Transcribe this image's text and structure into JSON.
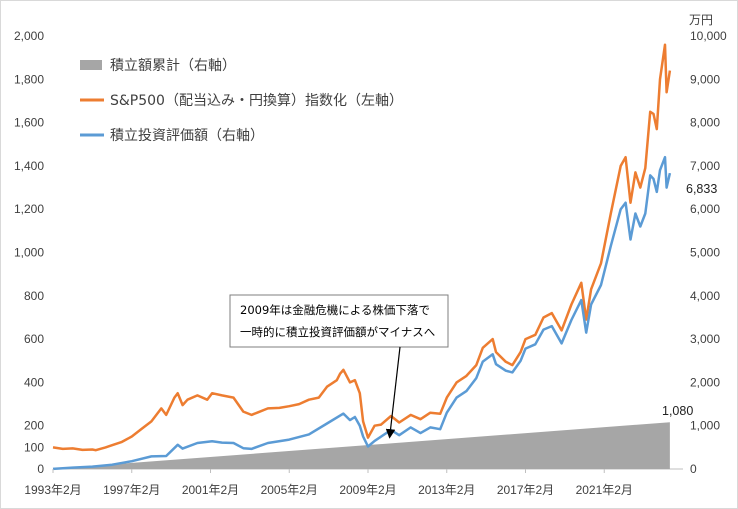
{
  "chart_data": {
    "type": "line",
    "title": "",
    "x_labels": [
      "1993年2月",
      "1997年2月",
      "2001年2月",
      "2005年2月",
      "2009年2月",
      "2013年2月",
      "2017年2月",
      "2021年2月"
    ],
    "x_range": [
      "1993-02",
      "2024-06"
    ],
    "left_axis": {
      "range": [
        0,
        2000
      ],
      "ticks": [
        "0",
        "100",
        "200",
        "400",
        "600",
        "800",
        "1,000",
        "1,200",
        "1,400",
        "1,600",
        "1,800",
        "2,000"
      ],
      "tick_values": [
        0,
        100,
        200,
        400,
        600,
        800,
        1000,
        1200,
        1400,
        1600,
        1800,
        2000
      ]
    },
    "right_axis": {
      "unit": "万円",
      "range": [
        0,
        10000
      ],
      "ticks": [
        "0",
        "1,000",
        "2,000",
        "3,000",
        "4,000",
        "5,000",
        "6,000",
        "7,000",
        "8,000",
        "9,000",
        "10,000"
      ],
      "tick_values": [
        0,
        1000,
        2000,
        3000,
        4000,
        5000,
        6000,
        7000,
        8000,
        9000,
        10000
      ]
    },
    "legend_position": "top-left",
    "series": [
      {
        "name": "積立額累計（右軸）",
        "kind": "area",
        "axis": "right",
        "color": "#a6a6a6",
        "points": [
          [
            "1993-02",
            3
          ],
          [
            "2024-06",
            1080
          ]
        ],
        "end_label": "1,080"
      },
      {
        "name": "S&P500（配当込み・円換算）指数化（左軸）",
        "kind": "line",
        "axis": "left",
        "color": "#ed7d31",
        "points": [
          [
            "1993-02",
            100
          ],
          [
            "1993-08",
            93
          ],
          [
            "1994-02",
            95
          ],
          [
            "1994-08",
            88
          ],
          [
            "1995-02",
            90
          ],
          [
            "1995-04",
            87
          ],
          [
            "1995-10",
            100
          ],
          [
            "1996-02",
            110
          ],
          [
            "1996-08",
            125
          ],
          [
            "1997-02",
            150
          ],
          [
            "1997-08",
            185
          ],
          [
            "1998-02",
            220
          ],
          [
            "1998-08",
            280
          ],
          [
            "1998-11",
            250
          ],
          [
            "1999-04",
            330
          ],
          [
            "1999-06",
            350
          ],
          [
            "1999-09",
            295
          ],
          [
            "1999-12",
            320
          ],
          [
            "2000-06",
            340
          ],
          [
            "2000-12",
            320
          ],
          [
            "2001-03",
            350
          ],
          [
            "2001-09",
            340
          ],
          [
            "2002-04",
            330
          ],
          [
            "2002-10",
            265
          ],
          [
            "2003-03",
            250
          ],
          [
            "2003-07",
            262
          ],
          [
            "2004-01",
            280
          ],
          [
            "2004-08",
            282
          ],
          [
            "2005-02",
            290
          ],
          [
            "2005-08",
            300
          ],
          [
            "2006-02",
            320
          ],
          [
            "2006-08",
            330
          ],
          [
            "2007-01",
            380
          ],
          [
            "2007-07",
            410
          ],
          [
            "2007-09",
            440
          ],
          [
            "2007-11",
            458
          ],
          [
            "2008-03",
            400
          ],
          [
            "2008-06",
            410
          ],
          [
            "2008-09",
            350
          ],
          [
            "2008-11",
            220
          ],
          [
            "2009-02",
            145
          ],
          [
            "2009-06",
            200
          ],
          [
            "2009-10",
            205
          ],
          [
            "2010-04",
            245
          ],
          [
            "2010-09",
            215
          ],
          [
            "2011-04",
            250
          ],
          [
            "2011-10",
            230
          ],
          [
            "2012-04",
            260
          ],
          [
            "2012-10",
            255
          ],
          [
            "2013-02",
            330
          ],
          [
            "2013-08",
            400
          ],
          [
            "2014-02",
            430
          ],
          [
            "2014-08",
            480
          ],
          [
            "2014-12",
            560
          ],
          [
            "2015-06",
            600
          ],
          [
            "2015-08",
            540
          ],
          [
            "2016-02",
            495
          ],
          [
            "2016-06",
            480
          ],
          [
            "2016-11",
            540
          ],
          [
            "2017-02",
            600
          ],
          [
            "2017-08",
            620
          ],
          [
            "2018-01",
            700
          ],
          [
            "2018-06",
            720
          ],
          [
            "2018-12",
            640
          ],
          [
            "2019-06",
            760
          ],
          [
            "2019-12",
            860
          ],
          [
            "2020-03",
            690
          ],
          [
            "2020-06",
            830
          ],
          [
            "2020-12",
            950
          ],
          [
            "2021-06",
            1180
          ],
          [
            "2021-12",
            1400
          ],
          [
            "2022-03",
            1440
          ],
          [
            "2022-06",
            1230
          ],
          [
            "2022-09",
            1370
          ],
          [
            "2022-12",
            1300
          ],
          [
            "2023-03",
            1390
          ],
          [
            "2023-06",
            1650
          ],
          [
            "2023-08",
            1640
          ],
          [
            "2023-10",
            1570
          ],
          [
            "2023-12",
            1800
          ],
          [
            "2024-03",
            1960
          ],
          [
            "2024-04",
            1740
          ],
          [
            "2024-06",
            1840
          ]
        ]
      },
      {
        "name": "積立投資評価額（右軸）",
        "kind": "line",
        "axis": "right",
        "color": "#5b9bd5",
        "end_label": "6,833",
        "points": [
          [
            "1993-02",
            3
          ],
          [
            "1994-02",
            32
          ],
          [
            "1995-02",
            55
          ],
          [
            "1996-02",
            100
          ],
          [
            "1997-02",
            180
          ],
          [
            "1998-02",
            290
          ],
          [
            "1998-11",
            300
          ],
          [
            "1999-06",
            560
          ],
          [
            "1999-09",
            470
          ],
          [
            "2000-06",
            600
          ],
          [
            "2001-03",
            640
          ],
          [
            "2001-09",
            610
          ],
          [
            "2002-04",
            600
          ],
          [
            "2002-10",
            480
          ],
          [
            "2003-03",
            465
          ],
          [
            "2004-01",
            600
          ],
          [
            "2005-02",
            680
          ],
          [
            "2006-02",
            800
          ],
          [
            "2007-01",
            1050
          ],
          [
            "2007-11",
            1280
          ],
          [
            "2008-03",
            1130
          ],
          [
            "2008-06",
            1200
          ],
          [
            "2008-09",
            1000
          ],
          [
            "2008-11",
            750
          ],
          [
            "2009-02",
            520
          ],
          [
            "2009-06",
            650
          ],
          [
            "2010-04",
            900
          ],
          [
            "2010-09",
            780
          ],
          [
            "2011-04",
            960
          ],
          [
            "2011-10",
            830
          ],
          [
            "2012-04",
            960
          ],
          [
            "2012-10",
            920
          ],
          [
            "2013-02",
            1300
          ],
          [
            "2013-08",
            1650
          ],
          [
            "2014-02",
            1800
          ],
          [
            "2014-08",
            2100
          ],
          [
            "2014-12",
            2480
          ],
          [
            "2015-06",
            2650
          ],
          [
            "2015-08",
            2420
          ],
          [
            "2016-02",
            2270
          ],
          [
            "2016-06",
            2230
          ],
          [
            "2016-11",
            2500
          ],
          [
            "2017-02",
            2780
          ],
          [
            "2017-08",
            2880
          ],
          [
            "2018-01",
            3220
          ],
          [
            "2018-06",
            3300
          ],
          [
            "2018-12",
            2900
          ],
          [
            "2019-06",
            3440
          ],
          [
            "2019-12",
            3900
          ],
          [
            "2020-03",
            3150
          ],
          [
            "2020-06",
            3800
          ],
          [
            "2020-12",
            4250
          ],
          [
            "2021-06",
            5150
          ],
          [
            "2021-12",
            6000
          ],
          [
            "2022-03",
            6150
          ],
          [
            "2022-06",
            5300
          ],
          [
            "2022-09",
            5900
          ],
          [
            "2022-12",
            5600
          ],
          [
            "2023-03",
            5900
          ],
          [
            "2023-06",
            6780
          ],
          [
            "2023-08",
            6700
          ],
          [
            "2023-10",
            6400
          ],
          [
            "2023-12",
            6900
          ],
          [
            "2024-03",
            7200
          ],
          [
            "2024-04",
            6500
          ],
          [
            "2024-06",
            6833
          ]
        ]
      }
    ],
    "annotation": {
      "lines": [
        "2009年は金融危機による株価下落で",
        "一時的に積立投資評価額がマイナスへ"
      ],
      "points_to": [
        "2009-02",
        520
      ]
    }
  }
}
